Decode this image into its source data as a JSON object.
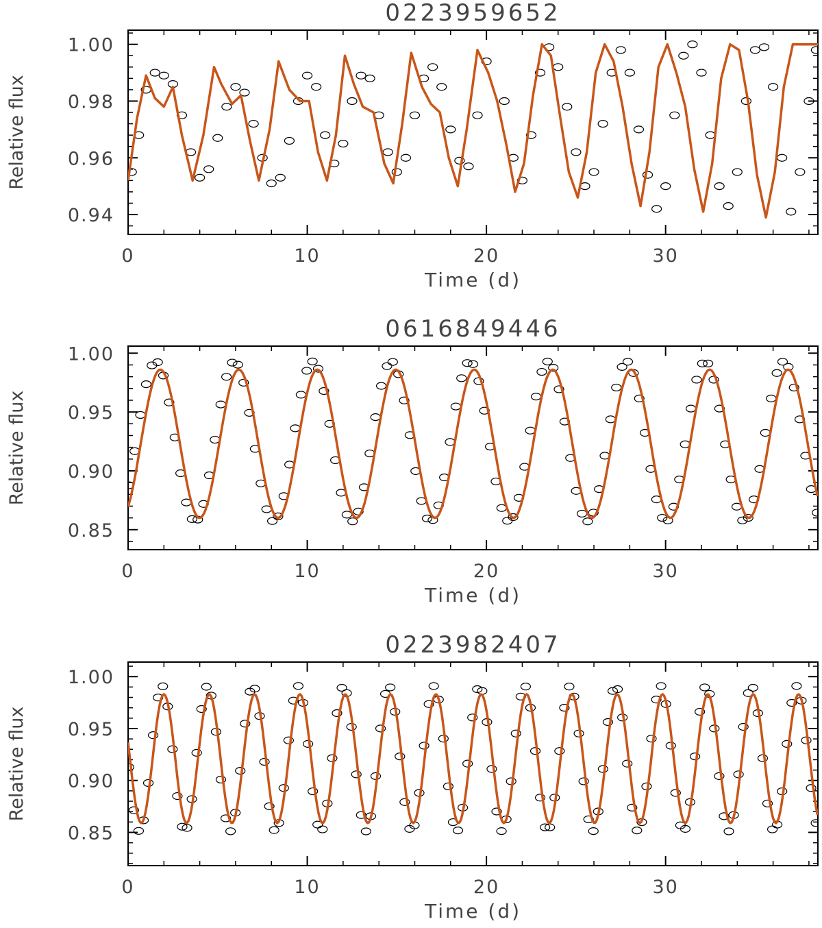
{
  "chart_data": [
    {
      "type": "scatter",
      "title": "0223959652",
      "xlabel": "Time (d)",
      "ylabel": "Relative flux",
      "xlim": [
        0,
        38.5
      ],
      "ylim": [
        0.933,
        1.005
      ],
      "xticks": [
        0,
        10,
        20,
        30
      ],
      "yticks": [
        0.94,
        0.96,
        0.98,
        1.0
      ],
      "ytick_labels": [
        "0.94",
        "0.96",
        "0.98",
        "1.00"
      ],
      "grid": false,
      "series": [
        {
          "kind": "markers",
          "color": "#000000",
          "x": [
            0.2,
            0.6,
            1.0,
            1.5,
            2.0,
            2.5,
            3.0,
            3.5,
            4.0,
            4.5,
            5.0,
            5.5,
            6.0,
            6.5,
            7.0,
            7.5,
            8.0,
            8.5,
            9.0,
            9.5,
            10.0,
            10.5,
            11.0,
            11.5,
            12.0,
            12.5,
            13.0,
            13.5,
            14.0,
            14.5,
            15.0,
            15.5,
            16.0,
            16.5,
            17.0,
            17.5,
            18.0,
            18.5,
            19.0,
            19.5,
            20.0,
            21.0,
            21.5,
            22.0,
            22.5,
            23.0,
            23.5,
            24.0,
            24.5,
            25.0,
            25.5,
            26.0,
            26.5,
            27.0,
            27.5,
            28.0,
            28.5,
            29.0,
            29.5,
            30.0,
            30.5,
            31.0,
            31.5,
            32.0,
            32.5,
            33.0,
            33.5,
            34.0,
            34.5,
            35.0,
            35.5,
            36.0,
            36.5,
            37.0,
            37.5,
            38.0,
            38.4
          ],
          "y": [
            0.955,
            0.968,
            0.984,
            0.99,
            0.989,
            0.986,
            0.975,
            0.962,
            0.953,
            0.956,
            0.967,
            0.978,
            0.985,
            0.983,
            0.972,
            0.96,
            0.951,
            0.953,
            0.966,
            0.98,
            0.989,
            0.985,
            0.968,
            0.958,
            0.965,
            0.98,
            0.989,
            0.988,
            0.975,
            0.962,
            0.955,
            0.96,
            0.975,
            0.988,
            0.992,
            0.985,
            0.97,
            0.959,
            0.957,
            0.975,
            0.994,
            0.98,
            0.96,
            0.952,
            0.968,
            0.99,
            0.999,
            0.992,
            0.978,
            0.962,
            0.95,
            0.955,
            0.972,
            0.99,
            0.998,
            0.99,
            0.97,
            0.954,
            0.942,
            0.95,
            0.975,
            0.996,
            1.0,
            0.99,
            0.968,
            0.95,
            0.943,
            0.955,
            0.98,
            0.998,
            0.999,
            0.985,
            0.96,
            0.941,
            0.955,
            0.98,
            0.998
          ]
        },
        {
          "kind": "line",
          "color": "#c8561a",
          "x": [
            0.0,
            0.5,
            1.0,
            1.5,
            2.0,
            2.5,
            3.0,
            3.6,
            4.2,
            4.8,
            5.2,
            5.8,
            6.3,
            6.8,
            7.3,
            7.9,
            8.4,
            9.0,
            9.6,
            10.1,
            10.6,
            11.1,
            11.6,
            12.1,
            12.6,
            13.1,
            13.7,
            14.3,
            14.8,
            15.3,
            15.8,
            16.4,
            16.9,
            17.4,
            17.9,
            18.4,
            18.9,
            19.5,
            20.1,
            20.6,
            21.1,
            21.6,
            22.1,
            22.6,
            23.1,
            23.6,
            24.1,
            24.6,
            25.1,
            25.6,
            26.1,
            26.6,
            27.1,
            27.6,
            28.1,
            28.6,
            29.1,
            29.6,
            30.1,
            30.6,
            31.1,
            31.6,
            32.1,
            32.6,
            33.1,
            33.6,
            34.1,
            34.6,
            35.1,
            35.6,
            36.1,
            36.6,
            37.1,
            37.6,
            38.1,
            38.5
          ],
          "y": [
            0.952,
            0.974,
            0.989,
            0.981,
            0.978,
            0.985,
            0.968,
            0.952,
            0.968,
            0.992,
            0.986,
            0.979,
            0.982,
            0.966,
            0.952,
            0.97,
            0.994,
            0.984,
            0.98,
            0.98,
            0.962,
            0.952,
            0.968,
            0.996,
            0.986,
            0.978,
            0.976,
            0.958,
            0.951,
            0.972,
            0.997,
            0.985,
            0.979,
            0.976,
            0.96,
            0.95,
            0.97,
            0.998,
            0.99,
            0.98,
            0.965,
            0.948,
            0.958,
            0.982,
            1.0,
            0.996,
            0.975,
            0.955,
            0.946,
            0.962,
            0.99,
            1.0,
            0.994,
            0.978,
            0.958,
            0.943,
            0.962,
            0.992,
            1.0,
            0.99,
            0.978,
            0.956,
            0.941,
            0.958,
            0.988,
            1.0,
            0.998,
            0.98,
            0.954,
            0.939,
            0.955,
            0.985,
            1.0,
            1.0,
            1.0,
            1.0
          ]
        }
      ]
    },
    {
      "type": "scatter",
      "title": "0616849446",
      "xlabel": "Time (d)",
      "ylabel": "Relative flux",
      "xlim": [
        0,
        38.5
      ],
      "ylim": [
        0.833,
        1.006
      ],
      "xticks": [
        0,
        10,
        20,
        30
      ],
      "yticks": [
        0.85,
        0.9,
        0.95,
        1.0
      ],
      "ytick_labels": [
        "0.85",
        "0.90",
        "0.95",
        "1.00"
      ],
      "grid": false,
      "model": {
        "offset": 0.923,
        "amplitude": 0.063,
        "period": 4.38,
        "phase_peak": 1.8
      },
      "points": {
        "offset": 0.925,
        "amplitude": 0.068,
        "period": 4.38,
        "phase_peak": 1.55,
        "step": 0.32
      }
    },
    {
      "type": "scatter",
      "title": "0223982407",
      "xlabel": "Time (d)",
      "ylabel": "Relative flux",
      "xlim": [
        0,
        38.5
      ],
      "ylim": [
        0.818,
        1.014
      ],
      "xticks": [
        0,
        10,
        20,
        30
      ],
      "yticks": [
        0.85,
        0.9,
        0.95,
        1.0
      ],
      "ytick_labels": [
        "0.85",
        "0.90",
        "0.95",
        "1.00"
      ],
      "grid": false,
      "model": {
        "offset": 0.921,
        "amplitude": 0.062,
        "period": 2.53,
        "phase_peak": 2.0
      },
      "points": {
        "offset": 0.921,
        "amplitude": 0.07,
        "period": 2.53,
        "phase_peak": 1.9,
        "step": 0.27
      }
    }
  ]
}
